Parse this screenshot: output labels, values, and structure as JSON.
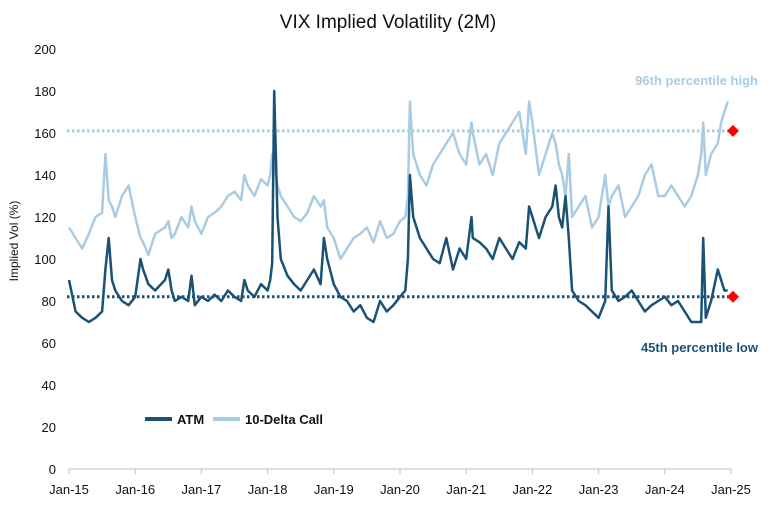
{
  "chart_data": {
    "type": "line",
    "title": "VIX Implied Volatility (2M)",
    "ylabel": "Implied Vol (%)",
    "xlabel": "",
    "ylim": [
      0,
      200
    ],
    "yticks": [
      0,
      20,
      40,
      60,
      80,
      100,
      120,
      140,
      160,
      180,
      200
    ],
    "xlim": [
      "2015-01",
      "2025-01"
    ],
    "xticks": [
      "Jan-15",
      "Jan-16",
      "Jan-17",
      "Jan-18",
      "Jan-19",
      "Jan-20",
      "Jan-21",
      "Jan-22",
      "Jan-23",
      "Jan-24",
      "Jan-25"
    ],
    "grid": false,
    "legend": "bottom-left",
    "series": [
      {
        "name": "ATM",
        "color": "#1a5276",
        "x": [
          2015.0,
          2015.1,
          2015.2,
          2015.3,
          2015.4,
          2015.5,
          2015.55,
          2015.6,
          2015.65,
          2015.7,
          2015.8,
          2015.9,
          2016.0,
          2016.08,
          2016.12,
          2016.2,
          2016.3,
          2016.45,
          2016.5,
          2016.55,
          2016.6,
          2016.7,
          2016.8,
          2016.85,
          2016.9,
          2017.0,
          2017.1,
          2017.2,
          2017.3,
          2017.4,
          2017.5,
          2017.6,
          2017.65,
          2017.7,
          2017.8,
          2017.9,
          2018.0,
          2018.04,
          2018.07,
          2018.1,
          2018.15,
          2018.2,
          2018.3,
          2018.4,
          2018.5,
          2018.6,
          2018.7,
          2018.8,
          2018.85,
          2018.9,
          2019.0,
          2019.1,
          2019.2,
          2019.3,
          2019.4,
          2019.5,
          2019.6,
          2019.7,
          2019.8,
          2019.9,
          2020.0,
          2020.08,
          2020.12,
          2020.15,
          2020.2,
          2020.3,
          2020.4,
          2020.5,
          2020.6,
          2020.7,
          2020.8,
          2020.9,
          2021.0,
          2021.08,
          2021.1,
          2021.2,
          2021.3,
          2021.4,
          2021.5,
          2021.6,
          2021.7,
          2021.8,
          2021.9,
          2021.95,
          2022.0,
          2022.1,
          2022.2,
          2022.3,
          2022.35,
          2022.4,
          2022.45,
          2022.5,
          2022.55,
          2022.6,
          2022.7,
          2022.8,
          2022.9,
          2023.0,
          2023.1,
          2023.15,
          2023.2,
          2023.3,
          2023.4,
          2023.5,
          2023.6,
          2023.7,
          2023.8,
          2023.9,
          2024.0,
          2024.1,
          2024.2,
          2024.3,
          2024.4,
          2024.5,
          2024.55,
          2024.58,
          2024.62,
          2024.7,
          2024.8,
          2024.85,
          2024.9,
          2024.95
        ],
        "values": [
          90,
          75,
          72,
          70,
          72,
          75,
          95,
          110,
          90,
          85,
          80,
          78,
          82,
          100,
          95,
          88,
          85,
          90,
          95,
          85,
          80,
          82,
          80,
          92,
          78,
          82,
          80,
          83,
          80,
          85,
          82,
          80,
          90,
          85,
          82,
          88,
          85,
          90,
          98,
          180,
          120,
          100,
          92,
          88,
          85,
          90,
          95,
          88,
          110,
          100,
          88,
          82,
          80,
          75,
          78,
          72,
          70,
          80,
          75,
          78,
          82,
          85,
          100,
          140,
          120,
          110,
          105,
          100,
          98,
          110,
          95,
          105,
          100,
          120,
          110,
          108,
          105,
          100,
          110,
          105,
          100,
          108,
          105,
          125,
          120,
          110,
          120,
          125,
          135,
          120,
          115,
          130,
          110,
          85,
          80,
          78,
          75,
          72,
          80,
          125,
          85,
          80,
          82,
          85,
          80,
          75,
          78,
          80,
          82,
          78,
          80,
          75,
          70,
          70,
          70,
          110,
          72,
          80,
          95,
          90,
          85,
          85
        ]
      },
      {
        "name": "10-Delta Call",
        "color": "#a9cce3",
        "x": [
          2015.0,
          2015.1,
          2015.2,
          2015.3,
          2015.4,
          2015.5,
          2015.55,
          2015.6,
          2015.65,
          2015.7,
          2015.8,
          2015.9,
          2016.0,
          2016.08,
          2016.12,
          2016.2,
          2016.3,
          2016.45,
          2016.5,
          2016.55,
          2016.6,
          2016.7,
          2016.8,
          2016.85,
          2016.9,
          2017.0,
          2017.1,
          2017.2,
          2017.3,
          2017.4,
          2017.5,
          2017.6,
          2017.65,
          2017.7,
          2017.8,
          2017.9,
          2018.0,
          2018.04,
          2018.07,
          2018.1,
          2018.15,
          2018.2,
          2018.3,
          2018.4,
          2018.5,
          2018.6,
          2018.7,
          2018.8,
          2018.85,
          2018.9,
          2019.0,
          2019.1,
          2019.2,
          2019.3,
          2019.4,
          2019.5,
          2019.6,
          2019.7,
          2019.8,
          2019.9,
          2020.0,
          2020.08,
          2020.12,
          2020.15,
          2020.2,
          2020.3,
          2020.4,
          2020.5,
          2020.6,
          2020.7,
          2020.8,
          2020.9,
          2021.0,
          2021.08,
          2021.1,
          2021.2,
          2021.3,
          2021.4,
          2021.5,
          2021.6,
          2021.7,
          2021.8,
          2021.9,
          2021.95,
          2022.0,
          2022.1,
          2022.2,
          2022.3,
          2022.35,
          2022.4,
          2022.45,
          2022.5,
          2022.55,
          2022.6,
          2022.7,
          2022.8,
          2022.9,
          2023.0,
          2023.1,
          2023.15,
          2023.2,
          2023.3,
          2023.4,
          2023.5,
          2023.6,
          2023.7,
          2023.8,
          2023.9,
          2024.0,
          2024.1,
          2024.2,
          2024.3,
          2024.4,
          2024.5,
          2024.55,
          2024.58,
          2024.62,
          2024.7,
          2024.8,
          2024.85,
          2024.9,
          2024.95
        ],
        "values": [
          115,
          110,
          105,
          112,
          120,
          122,
          150,
          128,
          125,
          120,
          130,
          135,
          120,
          110,
          108,
          102,
          112,
          115,
          118,
          110,
          112,
          120,
          115,
          125,
          118,
          112,
          120,
          122,
          125,
          130,
          132,
          128,
          140,
          135,
          130,
          138,
          135,
          140,
          150,
          145,
          135,
          130,
          125,
          120,
          118,
          122,
          130,
          125,
          128,
          115,
          110,
          100,
          105,
          110,
          112,
          115,
          108,
          118,
          110,
          112,
          118,
          120,
          130,
          175,
          150,
          140,
          135,
          145,
          150,
          155,
          160,
          150,
          145,
          165,
          160,
          145,
          150,
          140,
          155,
          160,
          165,
          170,
          150,
          175,
          165,
          140,
          150,
          160,
          155,
          145,
          140,
          130,
          150,
          120,
          125,
          130,
          115,
          120,
          140,
          125,
          130,
          135,
          120,
          125,
          130,
          140,
          145,
          130,
          130,
          135,
          130,
          125,
          130,
          140,
          150,
          165,
          140,
          150,
          155,
          165,
          170,
          175
        ]
      }
    ],
    "reference_lines": [
      {
        "label": "96th percentile high",
        "y": 161,
        "color": "#a9cce3",
        "marker": "diamond",
        "marker_color": "#ff0000"
      },
      {
        "label": "45th percentile low",
        "y": 82,
        "color": "#1a5276",
        "marker": "diamond",
        "marker_color": "#ff0000"
      }
    ]
  }
}
